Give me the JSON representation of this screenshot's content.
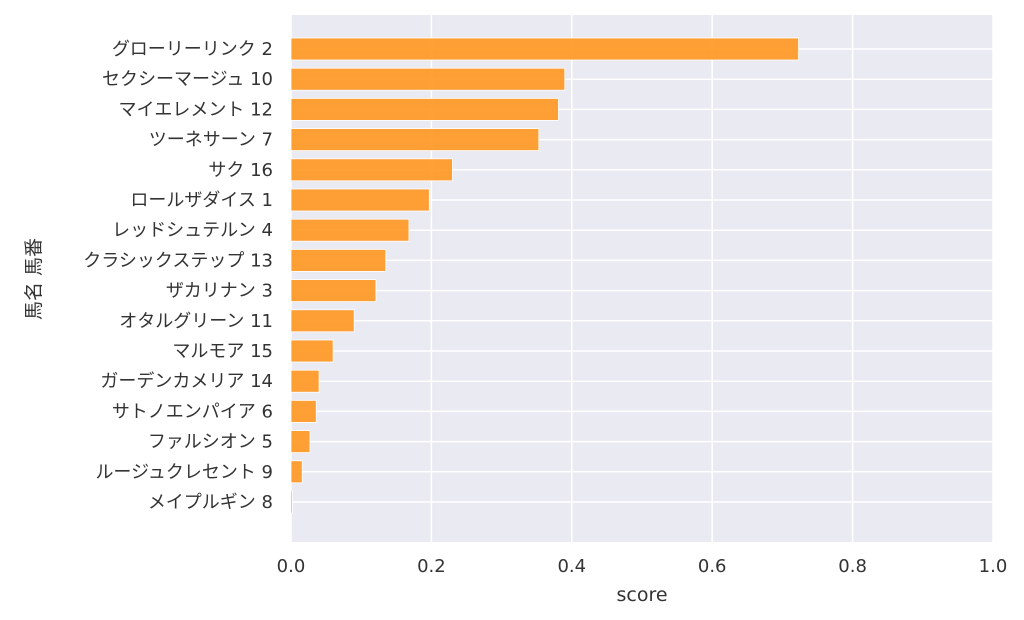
{
  "chart_data": {
    "type": "bar",
    "orientation": "horizontal",
    "xlabel": "score",
    "ylabel": "馬名 馬番",
    "xlim": [
      0,
      1.0
    ],
    "xticks": [
      "0.0",
      "0.2",
      "0.4",
      "0.6",
      "0.8",
      "1.0"
    ],
    "grid": true,
    "colors": {
      "bar": "#ff9b2a",
      "background": "#eaeaf2",
      "grid": "#ffffff"
    },
    "categories": [
      "グローリーリンク 2",
      "セクシーマージュ 10",
      "マイエレメント 12",
      "ツーネサーン 7",
      "サク 16",
      "ロールザダイス 1",
      "レッドシュテルン 4",
      "クラシックステップ 13",
      "ザカリナン 3",
      "オタルグリーン 11",
      "マルモア 15",
      "ガーデンカメリア 14",
      "サトノエンパイア 6",
      "ファルシオン 5",
      "ルージュクレセント 9",
      "メイプルギン 8"
    ],
    "values": [
      0.723,
      0.39,
      0.381,
      0.353,
      0.23,
      0.197,
      0.168,
      0.135,
      0.121,
      0.09,
      0.06,
      0.04,
      0.036,
      0.027,
      0.016,
      0.002
    ]
  }
}
